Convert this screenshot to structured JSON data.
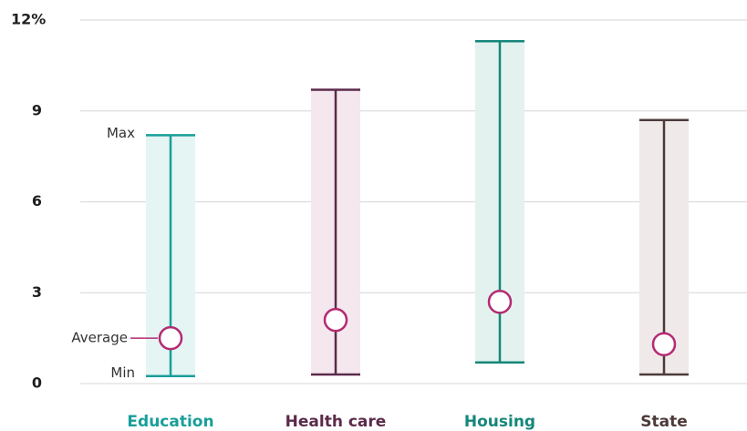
{
  "chart_data": {
    "type": "range",
    "categories": [
      "Education",
      "Health care",
      "Housing",
      "State"
    ],
    "max": [
      8.2,
      9.7,
      11.3,
      8.7
    ],
    "min": [
      0.25,
      0.3,
      0.7,
      0.3
    ],
    "average": [
      1.5,
      2.1,
      2.7,
      1.3
    ],
    "colors": [
      "#1a9e99",
      "#5b2a4b",
      "#15877a",
      "#4d3a3a"
    ],
    "band_colors": [
      "#e4f5f4",
      "#f4e7ed",
      "#e3f2ee",
      "#efe9ea"
    ],
    "average_color": "#b42a72",
    "annotations": {
      "max": "Max",
      "min": "Min",
      "average": "Average"
    },
    "ylim": [
      0,
      12
    ],
    "yticks": [
      0,
      3,
      6,
      9,
      {
        "value": 12,
        "label": "12%"
      }
    ],
    "grid": true
  }
}
